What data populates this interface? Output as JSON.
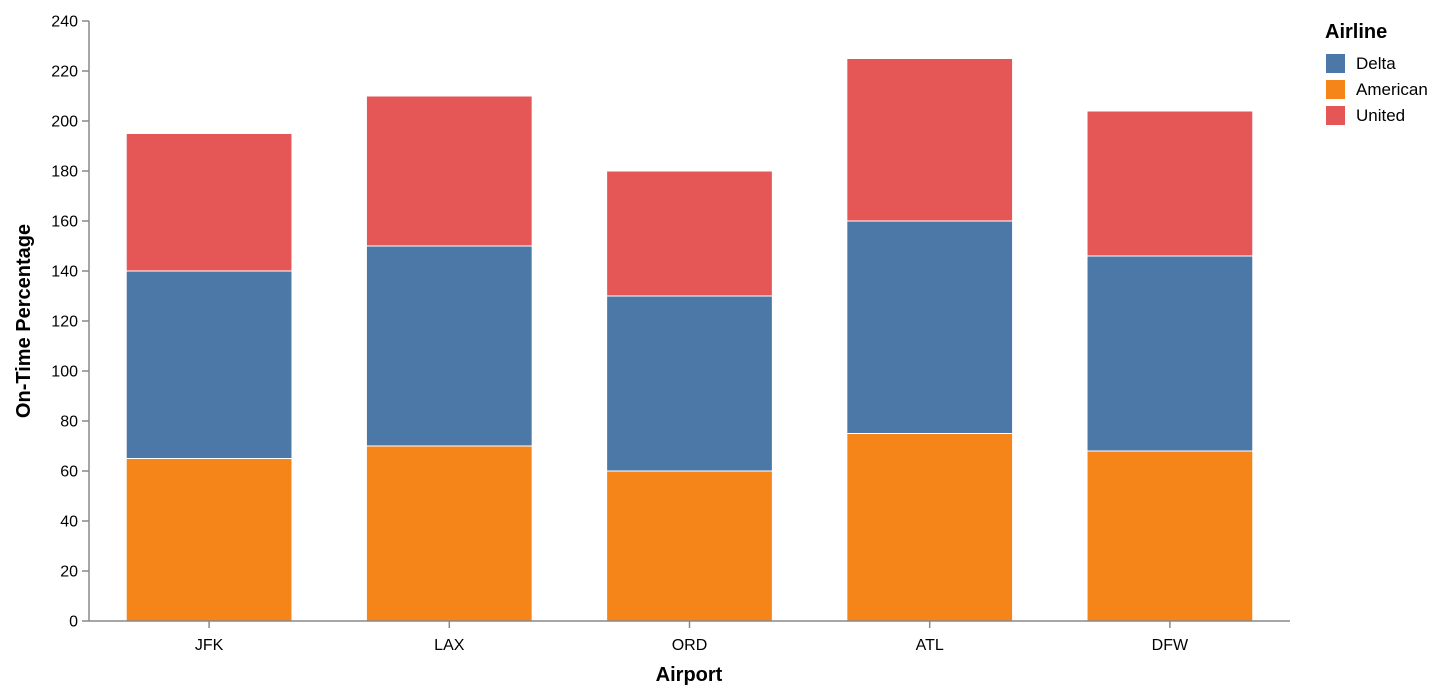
{
  "chart_data": {
    "type": "bar",
    "stacked": true,
    "xlabel": "Airport",
    "ylabel": "On-Time Percentage",
    "ylim": [
      0,
      240
    ],
    "yticks": [
      0,
      20,
      40,
      60,
      80,
      100,
      120,
      140,
      160,
      180,
      200,
      220,
      240
    ],
    "grid": false,
    "categories": [
      "JFK",
      "LAX",
      "ORD",
      "ATL",
      "DFW"
    ],
    "series": [
      {
        "name": "American",
        "color": "#f58518",
        "values": [
          65,
          70,
          60,
          75,
          68
        ]
      },
      {
        "name": "Delta",
        "color": "#4c78a8",
        "values": [
          75,
          80,
          70,
          85,
          78
        ]
      },
      {
        "name": "United",
        "color": "#e45756",
        "values": [
          55,
          60,
          50,
          65,
          58
        ]
      }
    ],
    "legend": {
      "title": "Airline",
      "position": "top-right",
      "order": [
        "Delta",
        "American",
        "United"
      ]
    }
  }
}
